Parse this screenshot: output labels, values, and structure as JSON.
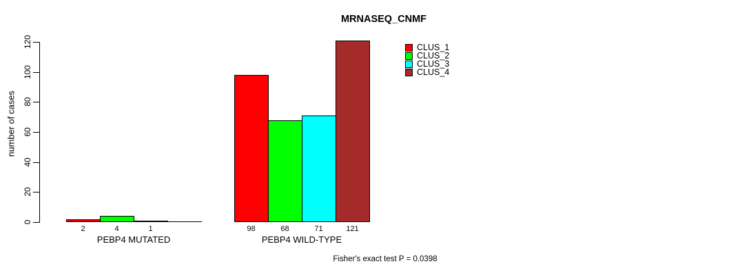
{
  "page": {
    "background": "#ffffff",
    "text_color": "#000000"
  },
  "chart_data": {
    "type": "bar",
    "title": "MRNASEQ_CNMF",
    "xlabel": "",
    "ylabel": "number of cases",
    "ylim": [
      0,
      120
    ],
    "yticks": [
      0,
      20,
      40,
      60,
      80,
      100,
      120
    ],
    "grid": false,
    "legend": {
      "position": "top-right",
      "entries": [
        {
          "label": "CLUS_1",
          "color": "#ff0000"
        },
        {
          "label": "CLUS_2",
          "color": "#00ff00"
        },
        {
          "label": "CLUS_3",
          "color": "#00ffff"
        },
        {
          "label": "CLUS_4",
          "color": "#a52a2a"
        }
      ]
    },
    "categories": [
      "PEBP4 MUTATED",
      "PEBP4 WILD-TYPE"
    ],
    "series": [
      {
        "name": "CLUS_1",
        "color": "#ff0000",
        "values": [
          2,
          98
        ]
      },
      {
        "name": "CLUS_2",
        "color": "#00ff00",
        "values": [
          4,
          68
        ]
      },
      {
        "name": "CLUS_3",
        "color": "#00ffff",
        "values": [
          1,
          71
        ]
      },
      {
        "name": "CLUS_4",
        "color": "#a52a2a",
        "values": [
          0,
          121
        ]
      }
    ],
    "groups": [
      {
        "label": "PEBP4 MUTATED",
        "values": [
          2,
          4,
          1,
          0
        ],
        "value_labels": [
          "2",
          "4",
          "1",
          ""
        ]
      },
      {
        "label": "PEBP4 WILD-TYPE",
        "values": [
          98,
          68,
          71,
          121
        ],
        "value_labels": [
          "98",
          "68",
          "71",
          "121"
        ]
      }
    ],
    "annotation": "Fisher's exact test P = 0.0398"
  }
}
